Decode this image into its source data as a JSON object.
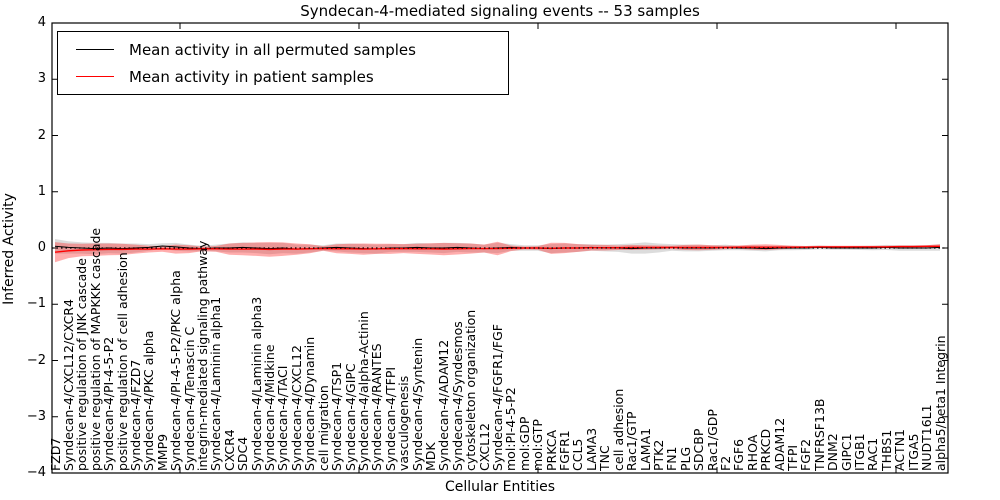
{
  "title": "Syndecan-4-mediated signaling events -- 53 samples",
  "axes": {
    "xlabel": "Cellular Entities",
    "ylabel": "Inferred Activity",
    "yticks": [
      4,
      3,
      2,
      1,
      0,
      -1,
      -2,
      -3,
      -4
    ],
    "ylim": [
      -4,
      4
    ]
  },
  "colors": {
    "permuted_line": "#000000",
    "patient_line": "#ff0000",
    "patient_band": "rgba(255,40,40,0.38)",
    "permuted_band": "rgba(130,130,130,0.28)",
    "zero_line": "#000000"
  },
  "chart_data": {
    "type": "line",
    "title": "Syndecan-4-mediated signaling events -- 53 samples",
    "xlabel": "Cellular Entities",
    "ylabel": "Inferred Activity",
    "ylim": [
      -4,
      4
    ],
    "grid": false,
    "legend_position": "upper left",
    "categories": [
      "FZD7",
      "Syndecan-4/CXCL12/CXCR4",
      "positive regulation of JNK cascade",
      "positive regulation of MAPKKK cascade",
      "Syndecan-4/PI-4-5-P2",
      "positive regulation of cell adhesion",
      "Syndecan-4/FZD7",
      "Syndecan-4/PKC alpha",
      "MMP9",
      "Syndecan-4/PI-4-5-P2/PKC alpha",
      "Syndecan-4/Tenascin C",
      "integrin-mediated signaling pathway",
      "Syndecan-4/Laminin alpha1",
      "CXCR4",
      "SDC4",
      "Syndecan-4/Laminin alpha3",
      "Syndecan-4/Midkine",
      "Syndecan-4/TACI",
      "Syndecan-4/CXCL12",
      "Syndecan-4/Dynamin",
      "cell migration",
      "Syndecan-4/TSP1",
      "Syndecan-4/GIPC",
      "Syndecan-4/alpha-Actinin",
      "Syndecan-4/RANTES",
      "Syndecan-4/TFPI",
      "vasculogenesis",
      "Syndecan-4/Syntenin",
      "MDK",
      "Syndecan-4/ADAM12",
      "Syndecan-4/Syndesmos",
      "cytoskeleton organization",
      "CXCL12",
      "Syndecan-4/FGFR1/FGF",
      "mol:PI-4-5-P2",
      "mol:GDP",
      "mol:GTP",
      "PRKCA",
      "FGFR1",
      "CCL5",
      "LAMA3",
      "TNC",
      "cell adhesion",
      "Rac1/GTP",
      "LAMA1",
      "PTK2",
      "FN1",
      "PLG",
      "SDCBP",
      "Rac1/GDP",
      "F2",
      "FGF6",
      "RHOA",
      "PRKCD",
      "ADAM12",
      "TFPI",
      "FGF2",
      "TNFRSF13B",
      "DNM2",
      "GIPC1",
      "ITGB1",
      "RAC1",
      "THBS1",
      "ACTN1",
      "ITGA5",
      "NUDT16L1",
      "alpha5/beta1 Integrin"
    ],
    "series": [
      {
        "name": "Mean activity in all permuted samples",
        "color": "#000000",
        "values": [
          0.03,
          0.01,
          0,
          -0.01,
          0,
          -0.01,
          0,
          0.01,
          0.035,
          0.02,
          0,
          -0.01,
          0,
          0,
          0.01,
          0,
          -0.01,
          0,
          -0.02,
          -0.01,
          0,
          0.01,
          0,
          -0.01,
          -0.02,
          0,
          0,
          0.01,
          0,
          0,
          0.01,
          0,
          -0.01,
          0,
          0.01,
          0,
          0,
          -0.01,
          0,
          0,
          0.01,
          0,
          0,
          -0.01,
          0,
          0,
          0.01,
          0,
          0,
          0,
          0.01,
          0,
          0,
          -0.01,
          0,
          0,
          0,
          0.01,
          0,
          0,
          0,
          0,
          0.01,
          0,
          0,
          0,
          0.01
        ],
        "std": [
          0.13,
          0.11,
          0.1,
          0.1,
          0.09,
          0.09,
          0.08,
          0.06,
          0.05,
          0.07,
          0.06,
          0.05,
          0.06,
          0.08,
          0.09,
          0.09,
          0.1,
          0.09,
          0.08,
          0.07,
          0.05,
          0.07,
          0.08,
          0.08,
          0.08,
          0.07,
          0.07,
          0.08,
          0.08,
          0.09,
          0.08,
          0.08,
          0.07,
          0.09,
          0.06,
          0.05,
          0.05,
          0.08,
          0.08,
          0.07,
          0.06,
          0.06,
          0.07,
          0.09,
          0.1,
          0.08,
          0.06,
          0.06,
          0.06,
          0.05,
          0.05,
          0.04,
          0.05,
          0.05,
          0.04,
          0.04,
          0.035,
          0.035,
          0.03,
          0.03,
          0.035,
          0.04,
          0.045,
          0.05,
          0.05,
          0.05,
          0.06
        ]
      },
      {
        "name": "Mean activity in patient samples",
        "color": "#ff0000",
        "values": [
          -0.075,
          -0.05,
          -0.035,
          -0.03,
          -0.025,
          -0.025,
          -0.02,
          -0.02,
          -0.015,
          -0.02,
          -0.02,
          -0.015,
          -0.015,
          -0.02,
          -0.02,
          -0.02,
          -0.025,
          -0.02,
          -0.02,
          -0.015,
          -0.01,
          -0.015,
          -0.015,
          -0.02,
          -0.015,
          -0.015,
          -0.01,
          -0.015,
          -0.015,
          -0.02,
          -0.015,
          -0.01,
          -0.01,
          -0.01,
          -0.005,
          0,
          0,
          -0.005,
          0,
          0,
          0.005,
          0.005,
          0.005,
          0.01,
          0.01,
          0.01,
          0.01,
          0.01,
          0.01,
          0.01,
          0.01,
          0.015,
          0.015,
          0.015,
          0.015,
          0.015,
          0.015,
          0.02,
          0.02,
          0.02,
          0.02,
          0.02,
          0.02,
          0.025,
          0.025,
          0.03,
          0.03
        ],
        "std": [
          0.18,
          0.13,
          0.11,
          0.11,
          0.105,
          0.1,
          0.08,
          0.06,
          0.05,
          0.08,
          0.07,
          0.04,
          0.05,
          0.1,
          0.11,
          0.12,
          0.13,
          0.12,
          0.1,
          0.08,
          0.04,
          0.08,
          0.09,
          0.1,
          0.09,
          0.09,
          0.08,
          0.09,
          0.1,
          0.11,
          0.1,
          0.09,
          0.07,
          0.12,
          0.05,
          0.025,
          0.03,
          0.1,
          0.09,
          0.07,
          0.05,
          0.05,
          0.04,
          0.045,
          0.04,
          0.035,
          0.03,
          0.045,
          0.05,
          0.04,
          0.03,
          0.03,
          0.045,
          0.05,
          0.04,
          0.025,
          0.02,
          0.02,
          0.02,
          0.02,
          0.02,
          0.02,
          0.02,
          0.02,
          0.02,
          0.02,
          0.035
        ]
      }
    ],
    "zero_line": 0
  }
}
